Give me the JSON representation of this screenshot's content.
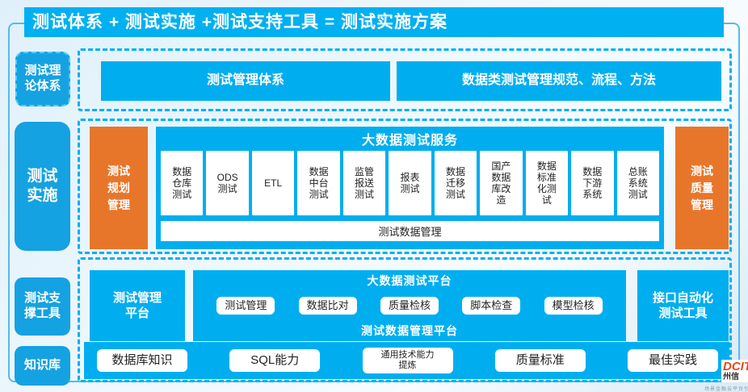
{
  "colors": {
    "accent_blue": "#00aeef",
    "accent_orange": "#e8762a",
    "dash_blue": "#00b0f0"
  },
  "title_bar": {
    "text": "测试体系 + 测试实施 +测试支持工具 = 测试实施方案"
  },
  "sidebar": {
    "theory": "测试理\n论体系",
    "implementation": "测试\n实施",
    "support_tools": "测试支\n撑工具",
    "knowledge": "知识库"
  },
  "theory_row": {
    "box1": "测试管理体系",
    "box2": "数据类测试管理规范、流程、方法"
  },
  "implementation_row": {
    "left_box": "测试\n规划\n管理",
    "service": {
      "title": "大数据测试服务",
      "cells": [
        "数据\n仓库\n测试",
        "ODS\n测试",
        "ETL",
        "数据\n中台\n测试",
        "监管\n报送\n测试",
        "报表\n测试",
        "数据\n迁移\n测试",
        "国产\n数据\n库改\n造",
        "数据\n标准\n化测\n试",
        "数据\n下游\n系统",
        "总账\n系统\n测试"
      ],
      "footer": "测试数据管理"
    },
    "right_box": "测试\n质量\n管理"
  },
  "tools_row": {
    "left_box": "测试管理\n平台",
    "platform": {
      "title": "大数据测试平台",
      "chips": [
        "测试管理",
        "数据比对",
        "质量检核",
        "脚本检查",
        "模型检核"
      ],
      "footer": "测试数据管理平台"
    },
    "right_box": "接口自动化\n测试工具"
  },
  "knowledge_row": {
    "chips": [
      "数据库知识",
      "SQL能力",
      "通用技术能力\n提炼",
      "质量标准",
      "最佳实践"
    ]
  },
  "logo": {
    "letters": "DCIT",
    "cn": "州信",
    "tagline": "场景金融云平台引"
  }
}
